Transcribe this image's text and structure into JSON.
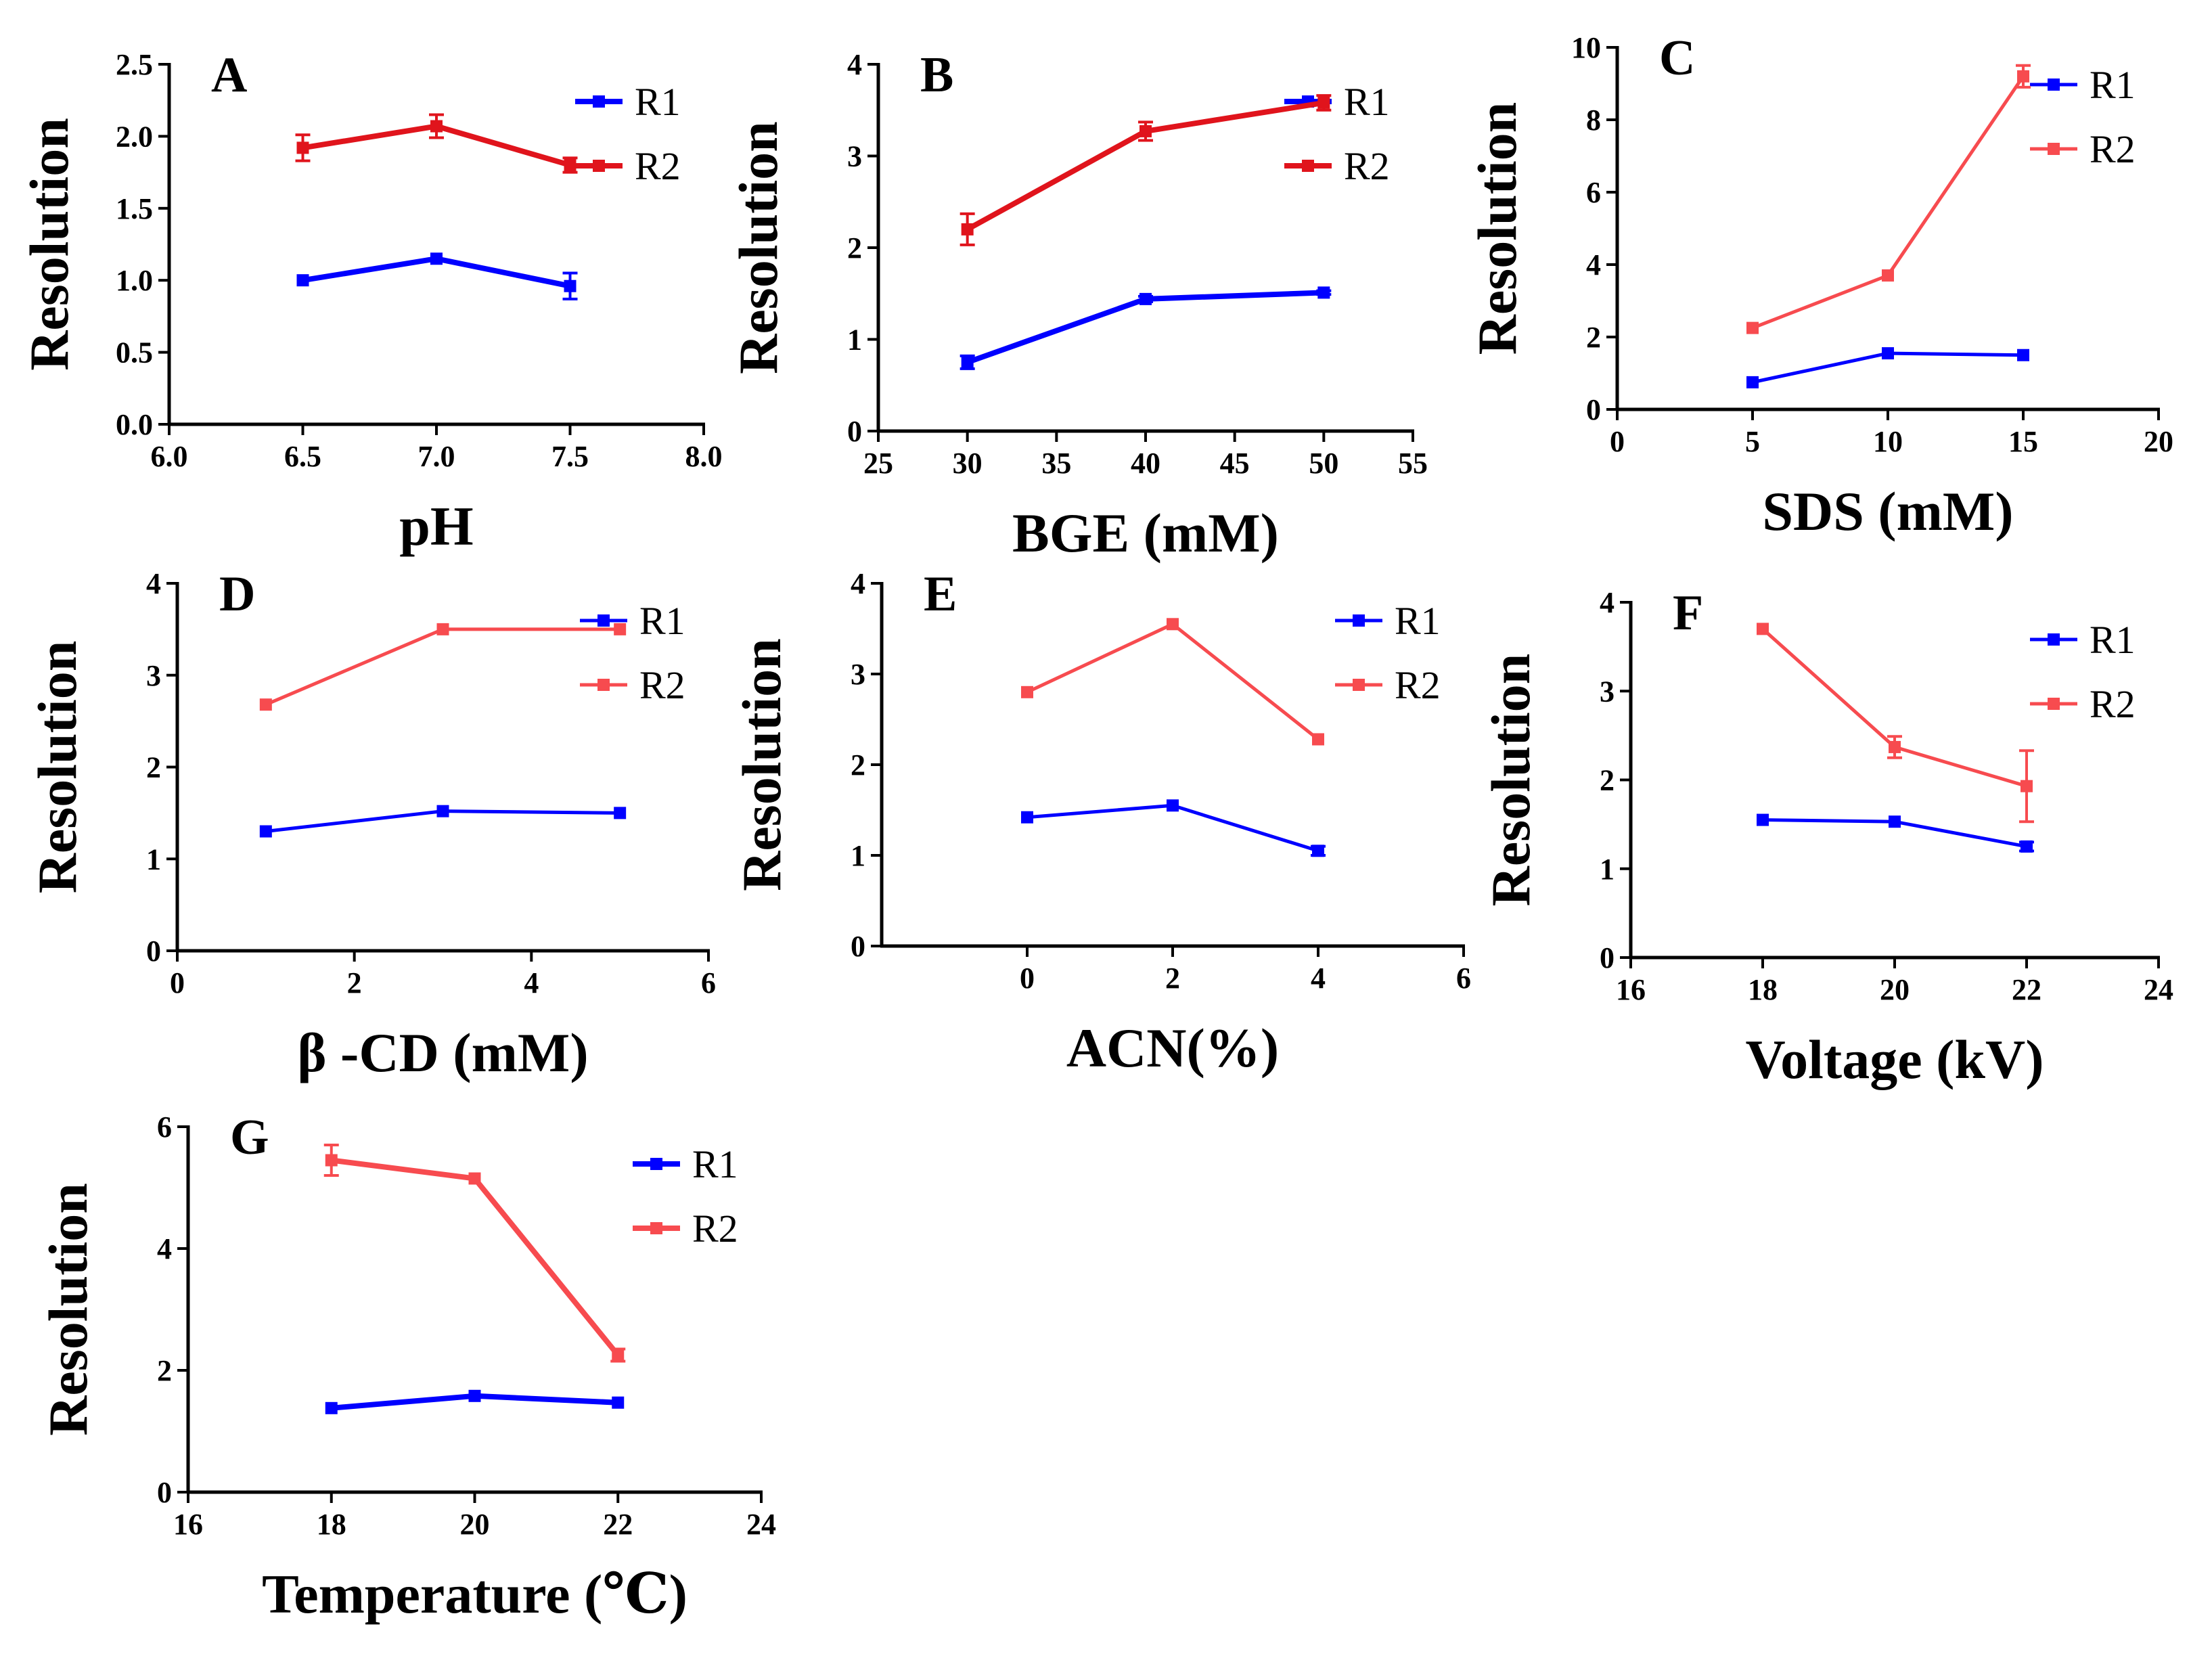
{
  "chart_data": [
    {
      "panel": "A",
      "type": "line",
      "xlabel": "pH",
      "ylabel": "Resolution",
      "xlim": [
        6.0,
        8.0
      ],
      "ylim": [
        0.0,
        2.5
      ],
      "xticks": [
        6.0,
        6.5,
        7.0,
        7.5,
        8.0
      ],
      "xtick_labels": [
        "6.0",
        "6.5",
        "7.0",
        "7.5",
        "8.0"
      ],
      "yticks": [
        0.0,
        0.5,
        1.0,
        1.5,
        2.0,
        2.5
      ],
      "ytick_labels": [
        "0.0",
        "0.5",
        "1.0",
        "1.5",
        "2.0",
        "2.5"
      ],
      "legend": "top-right",
      "series": [
        {
          "name": "R1",
          "color": "#0000ff",
          "x": [
            6.5,
            7.0,
            7.5
          ],
          "y": [
            1.0,
            1.15,
            0.96
          ],
          "err": [
            0.0,
            0.0,
            0.09
          ]
        },
        {
          "name": "R2",
          "color": "#e0141c",
          "x": [
            6.5,
            7.0,
            7.5
          ],
          "y": [
            1.92,
            2.07,
            1.8
          ],
          "err": [
            0.09,
            0.08,
            0.05
          ]
        }
      ]
    },
    {
      "panel": "B",
      "type": "line",
      "xlabel": "BGE (mM)",
      "ylabel": "Resolution",
      "xlim": [
        25,
        55
      ],
      "ylim": [
        0,
        4
      ],
      "xticks": [
        25,
        30,
        35,
        40,
        45,
        50,
        55
      ],
      "xtick_labels": [
        "25",
        "30",
        "35",
        "40",
        "45",
        "50",
        "55"
      ],
      "yticks": [
        0,
        1,
        2,
        3,
        4
      ],
      "ytick_labels": [
        "0",
        "1",
        "2",
        "3",
        "4"
      ],
      "legend": "top-right",
      "series": [
        {
          "name": "R1",
          "color": "#0000ff",
          "x": [
            30,
            40,
            50
          ],
          "y": [
            0.75,
            1.44,
            1.51
          ],
          "err": [
            0.07,
            0.03,
            0.02
          ]
        },
        {
          "name": "R2",
          "color": "#e0141c",
          "x": [
            30,
            40,
            50
          ],
          "y": [
            2.2,
            3.27,
            3.58
          ],
          "err": [
            0.17,
            0.1,
            0.08
          ]
        }
      ]
    },
    {
      "panel": "C",
      "type": "line",
      "xlabel": "SDS (mM)",
      "ylabel": "Resolution",
      "xlim": [
        0,
        20
      ],
      "ylim": [
        0,
        10
      ],
      "xticks": [
        0,
        5,
        10,
        15,
        20
      ],
      "xtick_labels": [
        "0",
        "5",
        "10",
        "15",
        "20"
      ],
      "yticks": [
        0,
        2,
        4,
        6,
        8,
        10
      ],
      "ytick_labels": [
        "0",
        "2",
        "4",
        "6",
        "8",
        "10"
      ],
      "legend": "top-right",
      "series": [
        {
          "name": "R1",
          "color": "#0000ff",
          "x": [
            5,
            10,
            15
          ],
          "y": [
            0.75,
            1.55,
            1.5
          ],
          "err": [
            0.0,
            0.0,
            0.0
          ]
        },
        {
          "name": "R2",
          "color": "#f74b4f",
          "x": [
            5,
            10,
            15
          ],
          "y": [
            2.25,
            3.7,
            9.2
          ],
          "err": [
            0.0,
            0.0,
            0.3
          ]
        }
      ]
    },
    {
      "panel": "D",
      "type": "line",
      "xlabel": "β -CD (mM)",
      "ylabel": "Resolution",
      "xlim": [
        0,
        6
      ],
      "ylim": [
        0,
        4
      ],
      "xticks": [
        0,
        2,
        4,
        6
      ],
      "xtick_labels": [
        "0",
        "2",
        "4",
        "6"
      ],
      "yticks": [
        0,
        1,
        2,
        3,
        4
      ],
      "ytick_labels": [
        "0",
        "1",
        "2",
        "3",
        "4"
      ],
      "legend": "top-right",
      "series": [
        {
          "name": "R1",
          "color": "#0000ff",
          "x": [
            1,
            3,
            5
          ],
          "y": [
            1.3,
            1.52,
            1.5
          ],
          "err": [
            0.0,
            0.0,
            0.0
          ]
        },
        {
          "name": "R2",
          "color": "#f74b4f",
          "x": [
            1,
            3,
            5
          ],
          "y": [
            2.68,
            3.5,
            3.5
          ],
          "err": [
            0.0,
            0.0,
            0.0
          ]
        }
      ]
    },
    {
      "panel": "E",
      "type": "line",
      "xlabel": "ACN(%)",
      "ylabel": "Resolution",
      "xlim": [
        -2,
        6
      ],
      "ylim": [
        0,
        4
      ],
      "xticks": [
        0,
        2,
        4,
        6
      ],
      "xtick_labels": [
        "0",
        "2",
        "4",
        "6"
      ],
      "yticks": [
        0,
        1,
        2,
        3,
        4
      ],
      "ytick_labels": [
        "0",
        "1",
        "2",
        "3",
        "4"
      ],
      "legend": "top-right",
      "series": [
        {
          "name": "R1",
          "color": "#0000ff",
          "x": [
            0,
            2,
            4
          ],
          "y": [
            1.42,
            1.55,
            1.05
          ],
          "err": [
            0.0,
            0.0,
            0.05
          ]
        },
        {
          "name": "R2",
          "color": "#f74b4f",
          "x": [
            0,
            2,
            4
          ],
          "y": [
            2.8,
            3.55,
            2.28
          ],
          "err": [
            0.0,
            0.0,
            0.0
          ]
        }
      ]
    },
    {
      "panel": "F",
      "type": "line",
      "xlabel": "Voltage (kV)",
      "ylabel": "Resolution",
      "xlim": [
        16,
        24
      ],
      "ylim": [
        0,
        4
      ],
      "xticks": [
        16,
        18,
        20,
        22,
        24
      ],
      "xtick_labels": [
        "16",
        "18",
        "20",
        "22",
        "24"
      ],
      "yticks": [
        0,
        1,
        2,
        3,
        4
      ],
      "ytick_labels": [
        "0",
        "1",
        "2",
        "3",
        "4"
      ],
      "legend": "top-right",
      "series": [
        {
          "name": "R1",
          "color": "#0000ff",
          "x": [
            18,
            20,
            22
          ],
          "y": [
            1.55,
            1.53,
            1.25
          ],
          "err": [
            0.0,
            0.0,
            0.05
          ]
        },
        {
          "name": "R2",
          "color": "#f74b4f",
          "x": [
            18,
            20,
            22
          ],
          "y": [
            3.7,
            2.37,
            1.93
          ],
          "err": [
            0.0,
            0.12,
            0.4
          ]
        }
      ]
    },
    {
      "panel": "G",
      "type": "line",
      "xlabel": "Temperature (℃)",
      "ylabel": "Resolution",
      "xlim": [
        16,
        24
      ],
      "ylim": [
        0,
        6
      ],
      "xticks": [
        16,
        18,
        20,
        22,
        24
      ],
      "xtick_labels": [
        "16",
        "18",
        "20",
        "22",
        "24"
      ],
      "yticks": [
        0,
        2,
        4,
        6
      ],
      "ytick_labels": [
        "0",
        "2",
        "4",
        "6"
      ],
      "legend": "top-right",
      "series": [
        {
          "name": "R1",
          "color": "#0000ff",
          "x": [
            18,
            20,
            22
          ],
          "y": [
            1.38,
            1.58,
            1.47
          ],
          "err": [
            0.0,
            0.0,
            0.0
          ]
        },
        {
          "name": "R2",
          "color": "#f74b4f",
          "x": [
            18,
            20,
            22
          ],
          "y": [
            5.45,
            5.15,
            2.25
          ],
          "err": [
            0.25,
            0.0,
            0.1
          ]
        }
      ]
    }
  ]
}
